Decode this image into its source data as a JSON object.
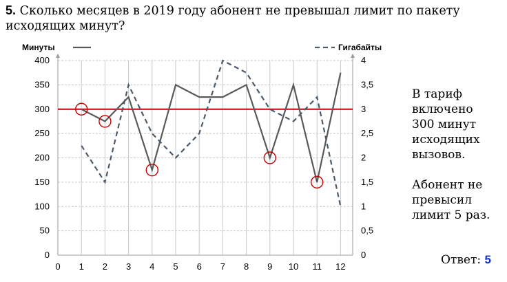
{
  "question": {
    "number": "5.",
    "text": "Сколько месяцев в 2019 году абонент не превышал лимит по пакету исходящих минут?"
  },
  "chart_data": {
    "type": "line",
    "x": [
      1,
      2,
      3,
      4,
      5,
      6,
      7,
      8,
      9,
      10,
      11,
      12
    ],
    "x_ticks": [
      "0",
      "1",
      "2",
      "3",
      "4",
      "5",
      "6",
      "7",
      "8",
      "9",
      "10",
      "11",
      "12"
    ],
    "xlim": [
      0,
      12.6
    ],
    "series": [
      {
        "name": "Минуты",
        "axis": "left",
        "style": "solid",
        "color": "#595959",
        "values": [
          300,
          275,
          325,
          175,
          350,
          325,
          325,
          350,
          200,
          350,
          150,
          375
        ]
      },
      {
        "name": "Гигабайты",
        "axis": "right",
        "style": "dashed",
        "color": "#4a5a6a",
        "values": [
          2.25,
          1.5,
          3.5,
          2.5,
          2,
          2.5,
          4,
          3.75,
          3,
          2.75,
          3.25,
          1
        ]
      }
    ],
    "left_axis": {
      "ylim": [
        0,
        400
      ],
      "ticks": [
        "0",
        "50",
        "100",
        "150",
        "200",
        "250",
        "300",
        "350",
        "400"
      ]
    },
    "right_axis": {
      "ylim": [
        0,
        4
      ],
      "ticks": [
        "0",
        "0,5",
        "1",
        "1,5",
        "2",
        "2,5",
        "3",
        "3,5",
        "4"
      ]
    },
    "limit_line": {
      "value": 300,
      "axis": "left",
      "color": "#c00000"
    },
    "circled_months": [
      1,
      2,
      4,
      9,
      11
    ],
    "circle_color": "#c00000",
    "grid": true,
    "legend_placement": "top"
  },
  "side_notes": {
    "note1": [
      "В тариф",
      "включено",
      "300 минут",
      "исходящих",
      "вызовов."
    ],
    "note2": [
      "Абонент не",
      "превысил",
      "лимит 5 раз."
    ]
  },
  "answer": {
    "label": "Ответ:",
    "value": "5",
    "value_color": "#1530c8"
  }
}
